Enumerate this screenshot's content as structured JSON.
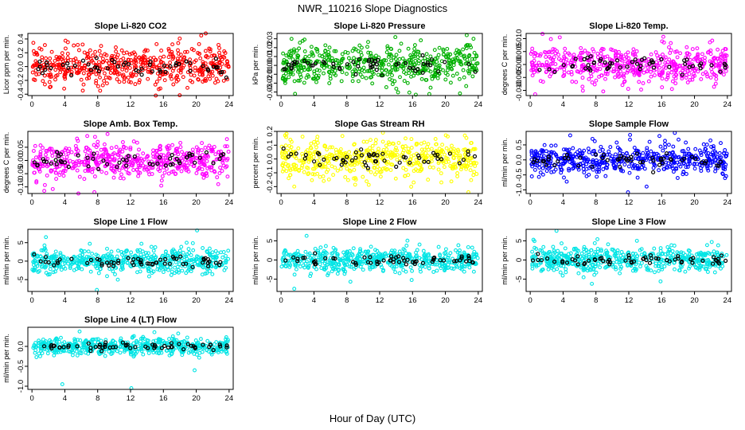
{
  "figure": {
    "title": "NWR_110216  Slope Diagnostics",
    "xlabel": "Hour of Day (UTC)"
  },
  "chart_data": [
    {
      "type": "scatter",
      "title": "Slope Li-820 CO2",
      "ylabel": "Licor ppm per min.",
      "xlim": [
        -0.5,
        24.5
      ],
      "ylim": [
        -0.42,
        0.48
      ],
      "yticks": [
        -0.4,
        -0.2,
        0.0,
        0.2,
        0.4
      ],
      "ytick_labels": [
        "-0.4",
        "-0.2",
        "0.0",
        "0.2",
        "0.4"
      ],
      "xticks": [
        0,
        4,
        8,
        12,
        16,
        20,
        24
      ],
      "color": "#ff0000",
      "spread": 0.14,
      "n": 520,
      "n_black": 55,
      "seed": 11,
      "outliers": [
        [
          20.6,
          0.45
        ],
        [
          8.3,
          -0.35
        ],
        [
          17.8,
          0.34
        ]
      ]
    },
    {
      "type": "scatter",
      "title": "Slope Li-820 Pressure",
      "ylabel": "kPa per min.",
      "xlim": [
        -0.5,
        24.5
      ],
      "ylim": [
        -0.034,
        0.036
      ],
      "yticks": [
        -0.03,
        -0.02,
        -0.01,
        0.0,
        0.01,
        0.02,
        0.03
      ],
      "ytick_labels": [
        "-0.03",
        "-0.02",
        "-0.01",
        "0.00",
        "0.01",
        "0.02",
        "0.03"
      ],
      "xticks": [
        0,
        4,
        8,
        12,
        16,
        20,
        24
      ],
      "color": "#00b000",
      "spread": 0.011,
      "n": 520,
      "n_black": 55,
      "seed": 23,
      "outliers": [
        [
          22.6,
          0.034
        ],
        [
          1.7,
          -0.032
        ],
        [
          16.4,
          -0.033
        ]
      ]
    },
    {
      "type": "scatter",
      "title": "Slope Li-820 Temp.",
      "ylabel": "degrees C per min.",
      "xlim": [
        -0.5,
        24.5
      ],
      "ylim": [
        -0.012,
        0.012
      ],
      "yticks": [
        -0.01,
        -0.005,
        0.0,
        0.005,
        0.01
      ],
      "ytick_labels": [
        "-0.010",
        "-0.005",
        "0.000",
        "0.005",
        "0.010"
      ],
      "xticks": [
        0,
        4,
        8,
        12,
        16,
        20,
        24
      ],
      "color": "#ff00ff",
      "spread": 0.0035,
      "n": 520,
      "n_black": 55,
      "seed": 37,
      "outliers": [
        [
          1.5,
          0.0118
        ],
        [
          0.6,
          -0.0115
        ],
        [
          3.6,
          0.0105
        ]
      ]
    },
    {
      "type": "scatter",
      "title": "Slope Amb. Box Temp.",
      "ylabel": "degrees C per min.",
      "xlim": [
        -0.5,
        24.5
      ],
      "ylim": [
        -0.125,
        0.11
      ],
      "yticks": [
        -0.1,
        -0.05,
        0.0,
        0.05
      ],
      "ytick_labels": [
        "-0.10",
        "-0.05",
        "0.00",
        "0.05"
      ],
      "xticks": [
        0,
        4,
        8,
        12,
        16,
        20,
        24
      ],
      "color": "#ff00ff",
      "spread": 0.035,
      "n": 520,
      "n_black": 55,
      "seed": 41,
      "outliers": [
        [
          9.2,
          0.1
        ],
        [
          1.5,
          -0.115
        ],
        [
          7.6,
          -0.12
        ]
      ]
    },
    {
      "type": "scatter",
      "title": "Slope Gas Stream RH",
      "ylabel": "percent per min.",
      "xlim": [
        -0.5,
        24.5
      ],
      "ylim": [
        -0.25,
        0.2
      ],
      "yticks": [
        -0.2,
        -0.1,
        0.0,
        0.1,
        0.2
      ],
      "ytick_labels": [
        "-0.2",
        "-0.1",
        "0.0",
        "0.1",
        "0.2"
      ],
      "xticks": [
        0,
        4,
        8,
        12,
        16,
        20,
        24
      ],
      "color": "#ffff00",
      "spread": 0.07,
      "n": 520,
      "n_black": 55,
      "seed": 53,
      "outliers": [
        [
          22.8,
          -0.24
        ],
        [
          12.4,
          0.19
        ],
        [
          1.6,
          -0.2
        ]
      ]
    },
    {
      "type": "scatter",
      "title": "Slope Sample Flow",
      "ylabel": "ml/min per min.",
      "xlim": [
        -0.5,
        24.5
      ],
      "ylim": [
        -1.12,
        0.95
      ],
      "yticks": [
        -1.0,
        -0.5,
        0.0,
        0.5
      ],
      "ytick_labels": [
        "-1.0",
        "-0.5",
        "0.0",
        "0.5"
      ],
      "xticks": [
        0,
        4,
        8,
        12,
        16,
        20,
        24
      ],
      "color": "#0000ff",
      "spread": 0.25,
      "n": 520,
      "n_black": 55,
      "seed": 67,
      "outliers": [
        [
          11.9,
          -1.08
        ],
        [
          0.2,
          -0.55
        ],
        [
          17.6,
          0.9
        ]
      ]
    },
    {
      "type": "scatter",
      "title": "Slope Line 1 Flow",
      "ylabel": "ml/min per min.",
      "xlim": [
        -0.5,
        24.5
      ],
      "ylim": [
        -8.2,
        8.6
      ],
      "yticks": [
        -5,
        0,
        5
      ],
      "ytick_labels": [
        "-5",
        "0",
        "5"
      ],
      "xticks": [
        0,
        4,
        8,
        12,
        16,
        20,
        24
      ],
      "color": "#00e5e5",
      "spread": 1.7,
      "n": 520,
      "n_black": 60,
      "seed": 71,
      "outliers": [
        [
          7.9,
          -7.8
        ],
        [
          20.1,
          8.3
        ],
        [
          1.7,
          6.5
        ]
      ]
    },
    {
      "type": "scatter",
      "title": "Slope Line 2 Flow",
      "ylabel": "ml/min per min.",
      "xlim": [
        -0.5,
        24.5
      ],
      "ylim": [
        -8.2,
        8.0
      ],
      "yticks": [
        -5,
        0,
        5
      ],
      "ytick_labels": [
        "-5",
        "0",
        "5"
      ],
      "xticks": [
        0,
        4,
        8,
        12,
        16,
        20,
        24
      ],
      "color": "#00e5e5",
      "spread": 1.6,
      "n": 520,
      "n_black": 60,
      "seed": 83,
      "outliers": [
        [
          3.1,
          6.3
        ],
        [
          1.6,
          -7.5
        ],
        [
          15.9,
          -5.2
        ]
      ]
    },
    {
      "type": "scatter",
      "title": "Slope Line 3 Flow",
      "ylabel": "ml/min per min.",
      "xlim": [
        -0.5,
        24.5
      ],
      "ylim": [
        -8.2,
        8.0
      ],
      "yticks": [
        -5,
        0,
        5
      ],
      "ytick_labels": [
        "-5",
        "0",
        "5"
      ],
      "xticks": [
        0,
        4,
        8,
        12,
        16,
        20,
        24
      ],
      "color": "#00e5e5",
      "spread": 1.6,
      "n": 520,
      "n_black": 60,
      "seed": 97,
      "outliers": [
        [
          3.2,
          7.6
        ],
        [
          6.5,
          -4.5
        ],
        [
          7.5,
          -6.2
        ]
      ]
    },
    {
      "type": "scatter",
      "title": "Slope Line 4 (LT) Flow",
      "ylabel": "ml/min per min.",
      "xlim": [
        -0.5,
        24.5
      ],
      "ylim": [
        -1.08,
        0.48
      ],
      "yticks": [
        -1.0,
        -0.5,
        0.0
      ],
      "ytick_labels": [
        "-1.0",
        "-0.5",
        "0.0"
      ],
      "xticks": [
        0,
        4,
        8,
        12,
        16,
        20,
        24
      ],
      "color": "#00e5e5",
      "spread": 0.11,
      "n": 520,
      "n_black": 60,
      "seed": 101,
      "outliers": [
        [
          12.1,
          -1.05
        ],
        [
          3.7,
          -0.95
        ],
        [
          19.8,
          -0.6
        ]
      ]
    }
  ]
}
